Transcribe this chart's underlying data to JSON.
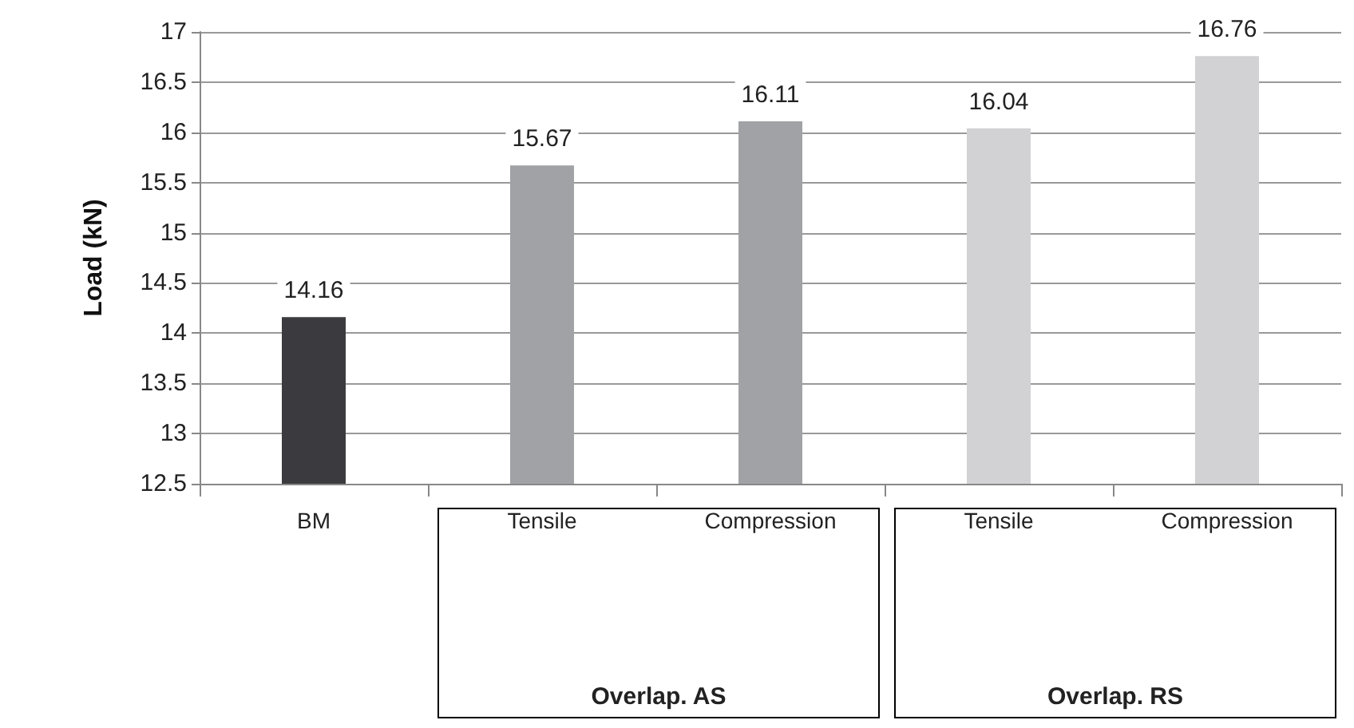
{
  "chart_data": {
    "type": "bar",
    "ylabel": "Load (kN)",
    "categories": [
      "BM",
      "Tensile",
      "Compression",
      "Tensile",
      "Compression"
    ],
    "values": [
      14.16,
      15.67,
      16.11,
      16.04,
      16.76
    ],
    "colors": [
      "#3b3b3f",
      "#a0a2a6",
      "#a0a2a6",
      "#d2d2d4",
      "#d2d2d4"
    ],
    "ylim": [
      12.5,
      17
    ],
    "yticks": [
      12.5,
      13,
      13.5,
      14,
      14.5,
      15,
      15.5,
      16,
      16.5,
      17
    ],
    "grid": "y",
    "data_labels": true,
    "annotations": [
      "Overlap. AS",
      "Overlap. RS"
    ]
  }
}
